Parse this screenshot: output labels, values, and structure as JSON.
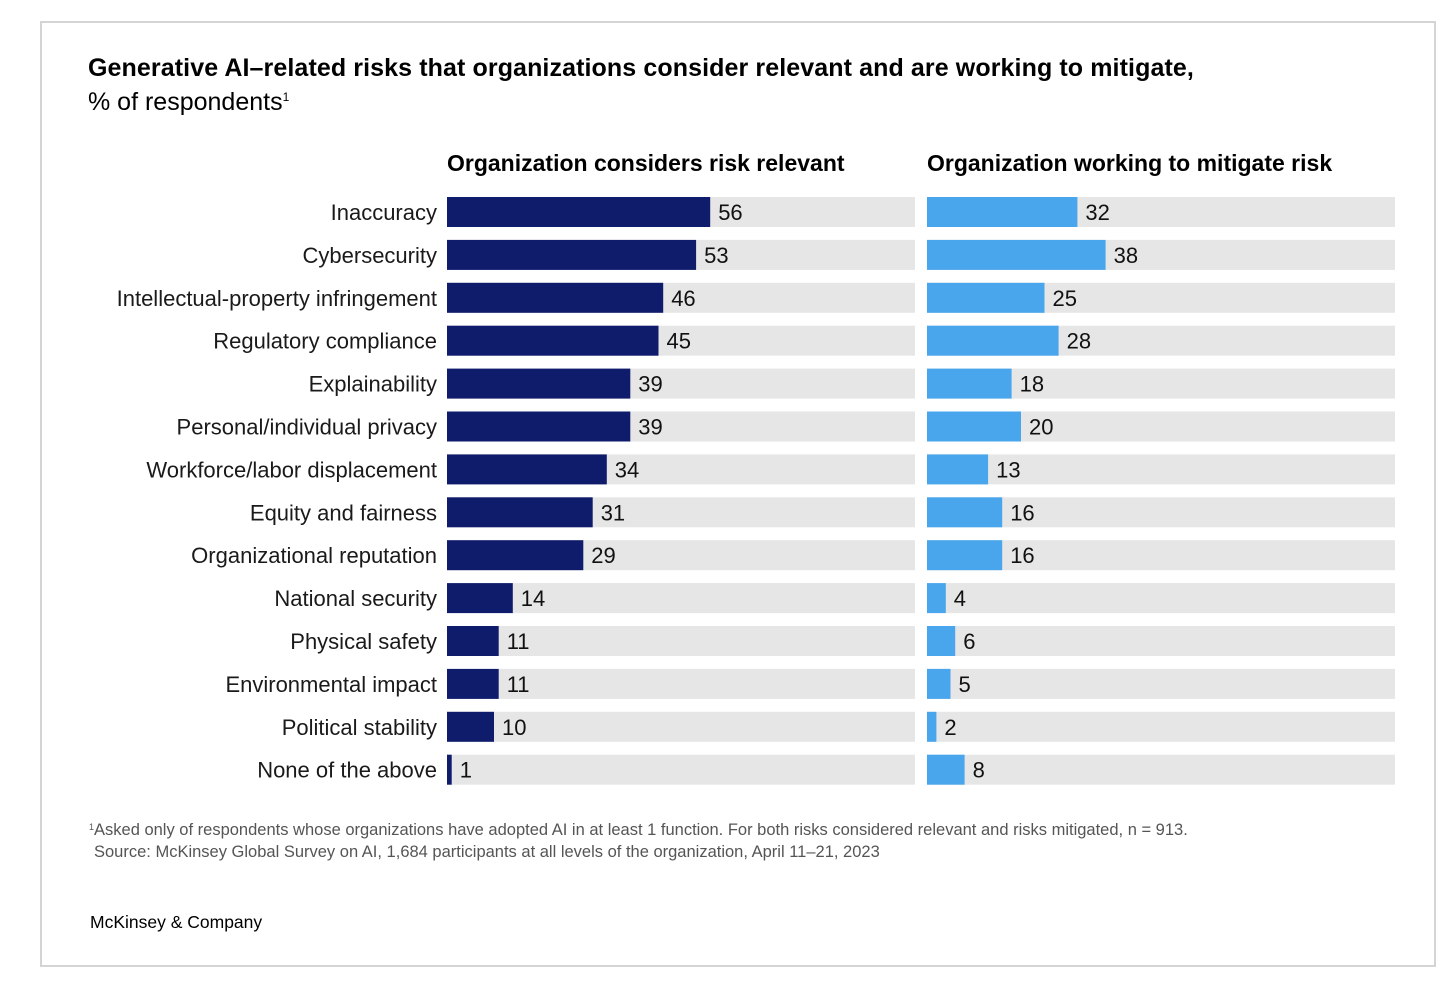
{
  "title": "Generative AI–related risks that organizations consider relevant and are working to mitigate,",
  "subtitle": "% of respondents",
  "subtitle_note_marker": "1",
  "footnote": {
    "marker": "1",
    "text": "Asked only of respondents whose organizations have adopted AI in at least 1 function. For both risks considered relevant and risks mitigated, n = 913.",
    "source": "Source: McKinsey Global Survey on AI, 1,684 participants at all levels of the organization, April 11–21, 2023"
  },
  "brand": "McKinsey & Company",
  "colors": {
    "relevant": "#0f1c6b",
    "mitigate": "#4aa6ec",
    "track": "#e6e6e6"
  },
  "chart_data": {
    "type": "bar",
    "orientation": "horizontal",
    "xlim": [
      0,
      100
    ],
    "categories": [
      "Inaccuracy",
      "Cybersecurity",
      "Intellectual-property infringement",
      "Regulatory compliance",
      "Explainability",
      "Personal/individual privacy",
      "Workforce/labor displacement",
      "Equity and fairness",
      "Organizational reputation",
      "National security",
      "Physical safety",
      "Environmental impact",
      "Political stability",
      "None of the above"
    ],
    "series": [
      {
        "name": "Organization considers risk relevant",
        "values": [
          56,
          53,
          46,
          45,
          39,
          39,
          34,
          31,
          29,
          14,
          11,
          11,
          10,
          1
        ]
      },
      {
        "name": "Organization working to mitigate risk",
        "values": [
          32,
          38,
          25,
          28,
          18,
          20,
          13,
          16,
          16,
          4,
          6,
          5,
          2,
          8
        ]
      }
    ]
  }
}
